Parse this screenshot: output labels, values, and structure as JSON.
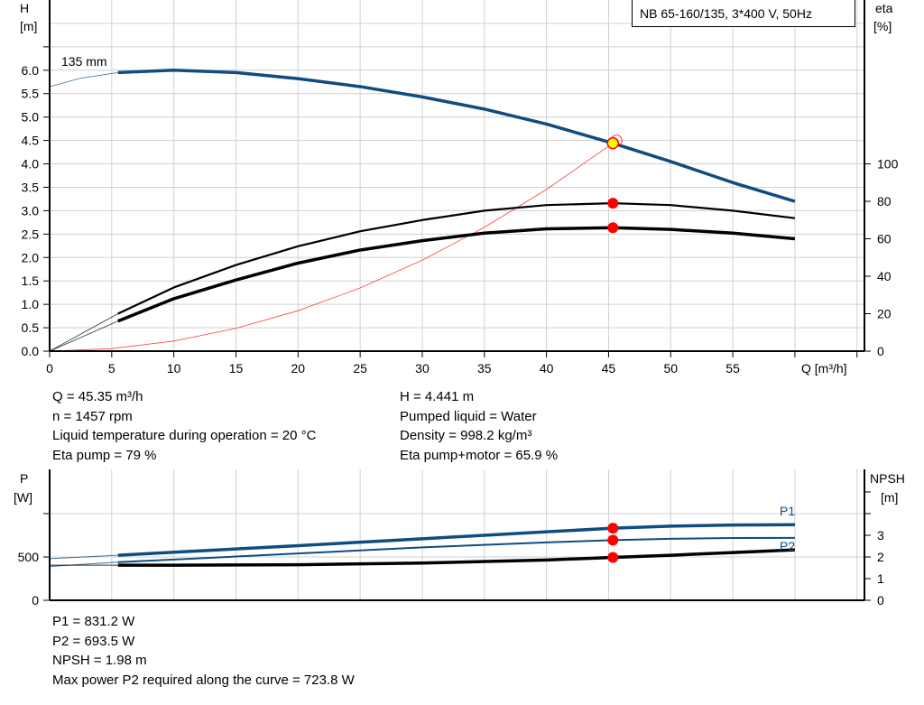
{
  "title": "NB 65-160/135, 3*400 V, 50Hz",
  "colors": {
    "head_curve": "#0f4c81",
    "efficiency": "#000000",
    "system_curve": "#ff4040",
    "duty_point": "#ff0000",
    "duty_marker_fill": "#ffff00",
    "grid": "#d0d0d0"
  },
  "chart_data": [
    {
      "type": "line",
      "xlabel": "Q [m³/h]",
      "ylabel": "H\n[m]",
      "ylabel_lines": [
        "H",
        "[m]"
      ],
      "y2label_lines": [
        "eta",
        "[%]"
      ],
      "xlim": [
        0,
        65.6
      ],
      "ylim": [
        0,
        7.5
      ],
      "y2lim": [
        0,
        187.5
      ],
      "grid": true,
      "x_ticks": [
        "0",
        "5",
        "10",
        "15",
        "20",
        "25",
        "30",
        "35",
        "40",
        "45",
        "50",
        "55"
      ],
      "y_ticks": [
        "0.0",
        "0.5",
        "1.0",
        "1.5",
        "2.0",
        "2.5",
        "3.0",
        "3.5",
        "4.0",
        "4.5",
        "5.0",
        "5.5",
        "6.0"
      ],
      "y2_ticks": [
        "0",
        "20",
        "40",
        "60",
        "80",
        "100"
      ],
      "curve_label": "135 mm",
      "series": [
        {
          "key": "H",
          "axis": "left",
          "x": [
            0,
            2.5,
            5.5,
            10,
            15,
            20,
            25,
            30,
            35,
            40,
            45.35,
            50,
            55,
            60
          ],
          "values": [
            5.65,
            5.83,
            5.95,
            6.0,
            5.95,
            5.82,
            5.65,
            5.43,
            5.17,
            4.85,
            4.441,
            4.05,
            3.6,
            3.2
          ]
        },
        {
          "key": "eta_pump",
          "axis": "right",
          "x": [
            0,
            5.5,
            10,
            15,
            20,
            25,
            30,
            35,
            40,
            45.35,
            50,
            55,
            60
          ],
          "values": [
            0,
            20,
            34,
            46,
            56,
            64,
            70,
            75,
            78,
            79,
            78,
            75,
            71
          ]
        },
        {
          "key": "eta_pump_motor",
          "axis": "right",
          "x": [
            0,
            5.5,
            10,
            15,
            20,
            25,
            30,
            35,
            40,
            45.35,
            50,
            55,
            60
          ],
          "values": [
            0,
            16,
            28,
            38,
            47,
            54,
            59,
            63,
            65.3,
            65.9,
            65,
            63,
            60
          ]
        },
        {
          "key": "system",
          "axis": "left",
          "x": [
            0,
            5,
            10,
            15,
            20,
            25,
            30,
            35,
            40,
            45.35
          ],
          "values": [
            0,
            0.054,
            0.216,
            0.486,
            0.864,
            1.35,
            1.943,
            2.644,
            3.454,
            4.441
          ]
        }
      ],
      "duty_point": {
        "Q": 45.35,
        "H": 4.441,
        "eta_pump": 79,
        "eta_pump_motor": 65.9
      }
    },
    {
      "type": "line",
      "ylabel_lines": [
        "P",
        "[W]"
      ],
      "y2label_lines": [
        "NPSH",
        "[m]"
      ],
      "xlim": [
        0,
        65.6
      ],
      "ylim": [
        0,
        1510
      ],
      "y2lim": [
        0,
        6.04
      ],
      "grid": true,
      "y_ticks": [
        "0",
        "500"
      ],
      "y2_ticks": [
        "0",
        "1",
        "2",
        "3"
      ],
      "series": [
        {
          "key": "P1",
          "name": "P1",
          "axis": "left",
          "x": [
            0,
            5.5,
            10,
            20,
            30,
            40,
            45.35,
            50,
            55,
            60
          ],
          "values": [
            480,
            520,
            555,
            630,
            710,
            790,
            831.2,
            855,
            868,
            872
          ]
        },
        {
          "key": "P2",
          "name": "P2",
          "axis": "left",
          "x": [
            0,
            5.5,
            10,
            20,
            30,
            40,
            45.35,
            50,
            55,
            60
          ],
          "values": [
            390,
            440,
            470,
            540,
            610,
            668,
            693.5,
            710,
            718,
            720
          ]
        },
        {
          "key": "NPSH",
          "axis": "right",
          "x": [
            0,
            5.5,
            10,
            20,
            30,
            40,
            45.35,
            50,
            55,
            60
          ],
          "values": [
            1.62,
            1.62,
            1.62,
            1.64,
            1.72,
            1.86,
            1.98,
            2.08,
            2.2,
            2.33
          ]
        }
      ],
      "duty_point": {
        "Q": 45.35,
        "P1": 831.2,
        "P2": 693.5,
        "NPSH": 1.98
      }
    }
  ],
  "info_top": {
    "left": [
      "Q = 45.35 m³/h",
      "n = 1457 rpm",
      "Liquid temperature during operation = 20 °C",
      "Eta pump = 79 %"
    ],
    "right": [
      "H = 4.441 m",
      "Pumped liquid = Water",
      "Density = 998.2 kg/m³",
      "Eta pump+motor = 65.9 %"
    ]
  },
  "info_bottom": [
    "P1 = 831.2 W",
    "P2 = 693.5 W",
    "NPSH = 1.98 m",
    "Max power P2 required along the curve = 723.8 W"
  ]
}
